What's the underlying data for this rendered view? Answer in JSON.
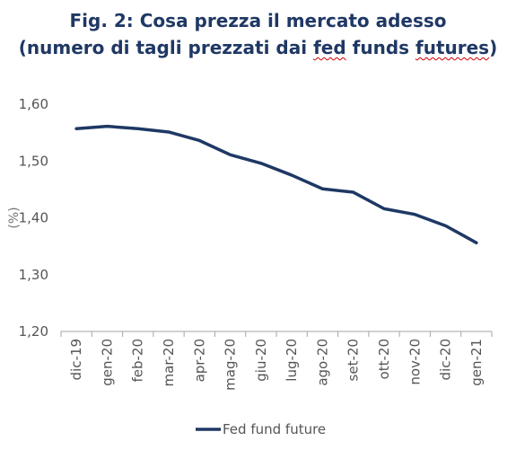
{
  "header": {
    "title_line1": "Fig. 2: Cosa prezza il mercato adesso",
    "title_line2_pre": "(numero di tagli prezzati dai ",
    "title_line2_fed": "fed",
    "title_line2_mid": " funds ",
    "title_line2_futures": "futures",
    "title_line2_post": ")"
  },
  "chart_data": {
    "type": "line",
    "title": "Fig. 2: Cosa prezza il mercato adesso (numero di tagli prezzati dai fed funds futures)",
    "xlabel": "",
    "ylabel": "(%)",
    "categories": [
      "dic-19",
      "gen-20",
      "feb-20",
      "mar-20",
      "apr-20",
      "mag-20",
      "giu-20",
      "lug-20",
      "ago-20",
      "set-20",
      "ott-20",
      "nov-20",
      "dic-20",
      "gen-21"
    ],
    "series": [
      {
        "name": "Fed fund future",
        "color": "#1f3864",
        "values": [
          1.557,
          1.561,
          1.557,
          1.551,
          1.536,
          1.511,
          1.496,
          1.475,
          1.451,
          1.445,
          1.416,
          1.406,
          1.386,
          1.356
        ]
      }
    ],
    "ylim": [
      1.2,
      1.6
    ],
    "yticks": [
      "1,60",
      "1,50",
      "1,40",
      "1,30",
      "1,20"
    ],
    "grid": false,
    "legend": "bottom-center"
  }
}
